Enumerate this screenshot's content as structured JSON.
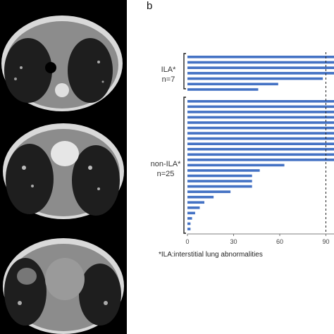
{
  "panel_b_letter": "b",
  "groups": {
    "ila": {
      "name": "ILA*",
      "count": "n=7"
    },
    "non_ila": {
      "name": "non-ILA*",
      "count": "n=25"
    }
  },
  "footnote": "*ILA:interstitial lung abnormalities",
  "colors": {
    "bar": "#4472c4",
    "axis": "#555555",
    "threshold_line": "#222222"
  },
  "chart_data": {
    "type": "bar",
    "orientation": "horizontal",
    "ila_values": [
      105,
      105,
      105,
      105,
      88,
      59,
      46
    ],
    "non_ila_values": [
      105,
      105,
      105,
      105,
      105,
      105,
      105,
      105,
      105,
      105,
      105,
      105,
      63,
      47,
      42,
      42,
      42,
      28,
      17,
      11,
      8,
      5,
      3,
      2,
      2
    ],
    "xticks": [
      "0",
      "30",
      "60",
      "90"
    ],
    "xlim": [
      0,
      105
    ],
    "reference_line": 90,
    "title": "",
    "xlabel": "",
    "ylabel": ""
  }
}
